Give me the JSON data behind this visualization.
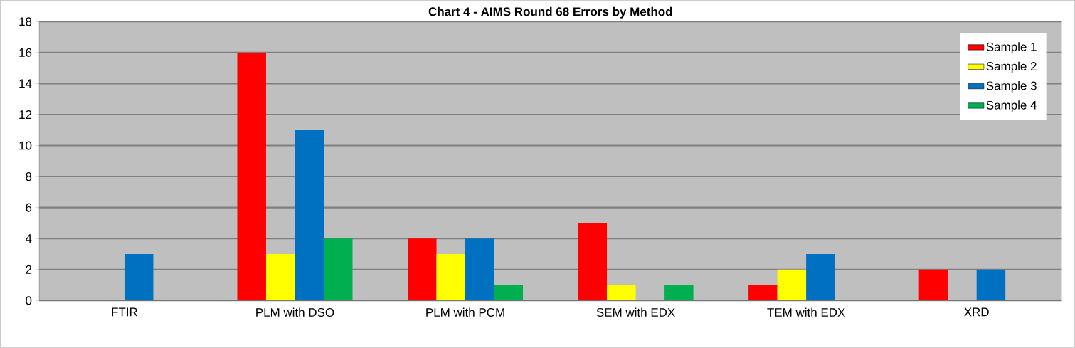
{
  "chart_data": {
    "type": "bar",
    "title": "Chart 4 - AIMS Round 68 Errors by Method",
    "categories": [
      "FTIR",
      "PLM with DSO",
      "PLM with PCM",
      "SEM with EDX",
      "TEM with EDX",
      "XRD"
    ],
    "series": [
      {
        "name": "Sample 1",
        "color": "#ff0000",
        "values": [
          0,
          16,
          4,
          5,
          1,
          2
        ]
      },
      {
        "name": "Sample 2",
        "color": "#ffff00",
        "values": [
          0,
          3,
          3,
          1,
          2,
          0
        ]
      },
      {
        "name": "Sample 3",
        "color": "#0070c0",
        "values": [
          3,
          11,
          4,
          0,
          3,
          2
        ]
      },
      {
        "name": "Sample 4",
        "color": "#00b050",
        "values": [
          0,
          4,
          1,
          1,
          0,
          0
        ]
      }
    ],
    "ylim": [
      0,
      18
    ],
    "yticks": [
      0,
      2,
      4,
      6,
      8,
      10,
      12,
      14,
      16,
      18
    ],
    "grid": "y",
    "legend": "top right"
  }
}
